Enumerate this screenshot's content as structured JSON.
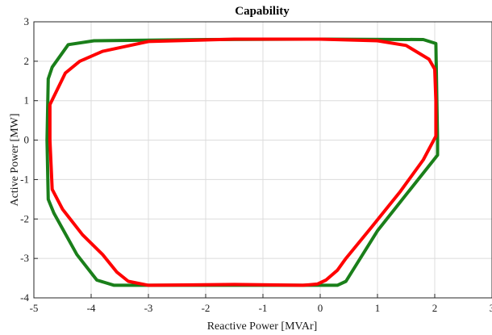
{
  "chart_data": {
    "type": "line",
    "title": "Capability",
    "xlabel": "Reactive Power [MVAr]",
    "ylabel": "Active Power [MW]",
    "xlim": [
      -5,
      3
    ],
    "ylim": [
      -4,
      3
    ],
    "xticks": [
      -5,
      -4,
      -3,
      -2,
      -1,
      0,
      1,
      2,
      3
    ],
    "yticks": [
      -4,
      -3,
      -2,
      -1,
      0,
      1,
      2,
      3
    ],
    "grid": true,
    "legend": "none",
    "series": [
      {
        "color": "#1a7f1a",
        "points": [
          [
            -4.75,
            1.55
          ],
          [
            -4.68,
            1.85
          ],
          [
            -4.4,
            2.42
          ],
          [
            -3.95,
            2.52
          ],
          [
            -2.0,
            2.55
          ],
          [
            0.0,
            2.56
          ],
          [
            1.8,
            2.55
          ],
          [
            2.02,
            2.45
          ],
          [
            2.05,
            0.0
          ],
          [
            2.05,
            -0.38
          ],
          [
            1.6,
            -1.2
          ],
          [
            1.0,
            -2.3
          ],
          [
            0.45,
            -3.58
          ],
          [
            0.3,
            -3.68
          ],
          [
            -0.5,
            -3.68
          ],
          [
            -2.0,
            -3.68
          ],
          [
            -3.6,
            -3.68
          ],
          [
            -3.9,
            -3.55
          ],
          [
            -4.25,
            -2.9
          ],
          [
            -4.65,
            -1.85
          ],
          [
            -4.75,
            -1.5
          ],
          [
            -4.77,
            0.0
          ],
          [
            -4.75,
            1.55
          ]
        ]
      },
      {
        "color": "#ff0000",
        "points": [
          [
            -4.72,
            0.9
          ],
          [
            -4.45,
            1.7
          ],
          [
            -4.2,
            2.0
          ],
          [
            -3.8,
            2.25
          ],
          [
            -3.0,
            2.5
          ],
          [
            -1.5,
            2.56
          ],
          [
            0.0,
            2.56
          ],
          [
            1.0,
            2.52
          ],
          [
            1.5,
            2.4
          ],
          [
            1.9,
            2.05
          ],
          [
            2.0,
            1.8
          ],
          [
            2.02,
            1.0
          ],
          [
            2.02,
            0.1
          ],
          [
            1.8,
            -0.5
          ],
          [
            1.4,
            -1.3
          ],
          [
            0.9,
            -2.2
          ],
          [
            0.45,
            -3.0
          ],
          [
            0.3,
            -3.3
          ],
          [
            0.1,
            -3.55
          ],
          [
            -0.05,
            -3.65
          ],
          [
            -0.3,
            -3.68
          ],
          [
            -1.5,
            -3.66
          ],
          [
            -3.0,
            -3.68
          ],
          [
            -3.35,
            -3.58
          ],
          [
            -3.55,
            -3.35
          ],
          [
            -3.8,
            -2.9
          ],
          [
            -4.15,
            -2.4
          ],
          [
            -4.5,
            -1.75
          ],
          [
            -4.68,
            -1.25
          ],
          [
            -4.72,
            0.0
          ],
          [
            -4.72,
            0.9
          ]
        ]
      }
    ]
  }
}
